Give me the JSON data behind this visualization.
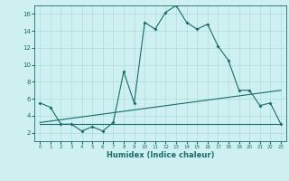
{
  "xlabel": "Humidex (Indice chaleur)",
  "background_color": "#cff0f0",
  "line_color": "#1a6b6b",
  "grid_color": "#aadddd",
  "xlim": [
    -0.5,
    23.5
  ],
  "ylim": [
    1,
    17
  ],
  "x_ticks": [
    0,
    1,
    2,
    3,
    4,
    5,
    6,
    7,
    8,
    9,
    10,
    11,
    12,
    13,
    14,
    15,
    16,
    17,
    18,
    19,
    20,
    21,
    22,
    23
  ],
  "y_ticks": [
    2,
    4,
    6,
    8,
    10,
    12,
    14,
    16
  ],
  "series1_x": [
    0,
    1,
    2,
    3,
    4,
    5,
    6,
    7,
    8,
    9,
    10,
    11,
    12,
    13,
    14,
    15,
    16,
    17,
    18,
    19,
    20,
    21,
    22,
    23
  ],
  "series1_y": [
    5.5,
    5.0,
    3.0,
    3.0,
    2.2,
    2.7,
    2.2,
    3.2,
    9.2,
    5.5,
    15.0,
    14.2,
    16.2,
    17.0,
    15.0,
    14.2,
    14.8,
    12.2,
    10.5,
    7.0,
    7.0,
    5.2,
    5.5,
    3.0
  ],
  "series2_x": [
    0,
    23
  ],
  "series2_y": [
    3.0,
    3.0
  ],
  "series3_x": [
    0,
    23
  ],
  "series3_y": [
    3.2,
    7.0
  ]
}
